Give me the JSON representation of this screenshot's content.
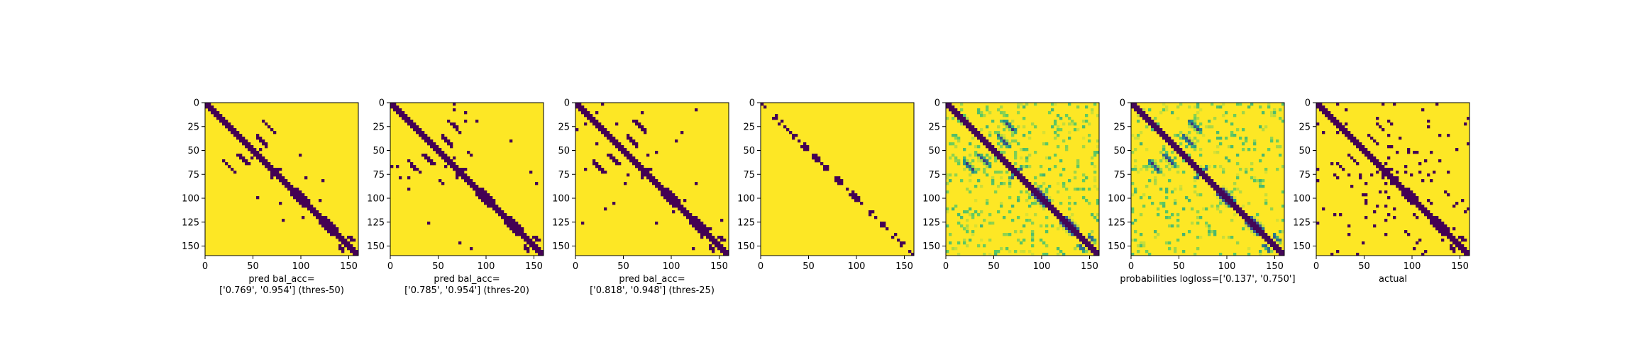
{
  "chart_data": {
    "type": "heatmap",
    "colormap": "viridis",
    "colors": {
      "low": "#440154",
      "mid": "#21918c",
      "high": "#fde725"
    },
    "axes": {
      "xlim": [
        0,
        160
      ],
      "ylim": [
        0,
        160
      ],
      "y_inverted": true,
      "xticks": [
        "0",
        "50",
        "100",
        "150"
      ],
      "yticks": [
        "0",
        "25",
        "50",
        "75",
        "100",
        "125",
        "150"
      ]
    },
    "panels": [
      {
        "caption_lines": [
          "pred bal_acc=",
          "['0.769', '0.954'] (thres-50)"
        ],
        "kind": "binary",
        "sparsity": 1.0
      },
      {
        "caption_lines": [
          "pred bal_acc=",
          "['0.785', '0.954'] (thres-20)"
        ],
        "kind": "binary",
        "sparsity": 1.1
      },
      {
        "caption_lines": [
          "pred bal_acc=",
          "['0.818', '0.948'] (thres-25)"
        ],
        "kind": "binary",
        "sparsity": 1.4
      },
      {
        "caption_lines": [],
        "kind": "thin",
        "sparsity": 0.3
      },
      {
        "caption_lines": [],
        "kind": "probability",
        "sparsity": 1.0
      },
      {
        "caption_lines": [
          "probabilities logloss=['0.137', '0.750']"
        ],
        "kind": "probability",
        "sparsity": 1.2
      },
      {
        "caption_lines": [
          "actual"
        ],
        "kind": "actual",
        "sparsity": 1.0
      }
    ]
  }
}
